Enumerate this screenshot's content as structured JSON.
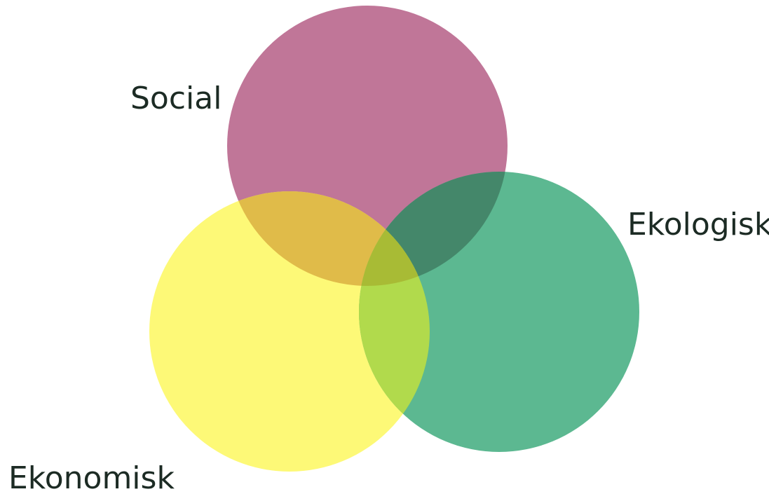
{
  "diagram": {
    "type": "venn",
    "sets": [
      {
        "key": "social",
        "label": "Social",
        "color": "#c07698"
      },
      {
        "key": "ekonomisk",
        "label": "Ekonomisk",
        "color": "#fdf977"
      },
      {
        "key": "ekologisk",
        "label": "Ekologisk",
        "color": "#5cb891"
      }
    ],
    "intersection_colors": {
      "social_ekonomisk": "#e0bb49",
      "social_ekologisk": "#44876a",
      "ekonomisk_ekologisk": "#b1da4c",
      "all_three": "#a8bb35"
    }
  }
}
